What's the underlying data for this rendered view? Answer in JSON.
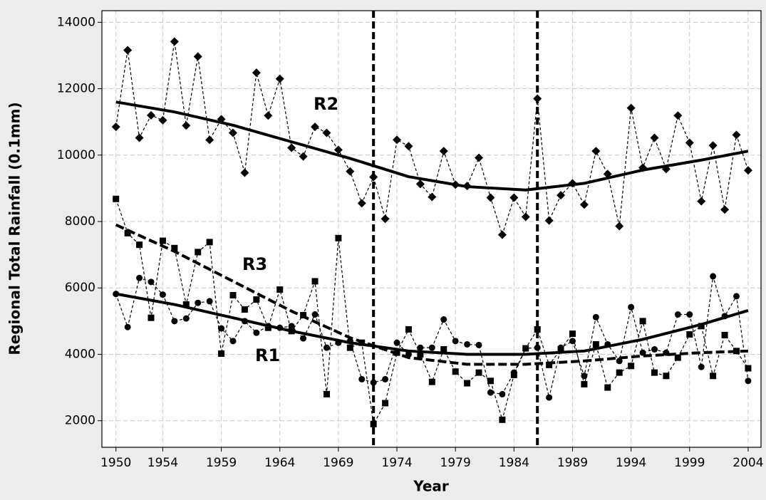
{
  "chart_data": {
    "type": "line",
    "xlabel": "Year",
    "ylabel": "Regional Total Rainfall (0.1mm)",
    "xlim": [
      1948.8,
      2005.1
    ],
    "ylim": [
      1200,
      14350
    ],
    "xticks": [
      1950,
      1954,
      1959,
      1964,
      1969,
      1974,
      1979,
      1984,
      1989,
      1994,
      1999,
      2004
    ],
    "yticks": [
      2000,
      4000,
      6000,
      8000,
      10000,
      12000,
      14000
    ],
    "grid": true,
    "vlines": [
      1972,
      1986
    ],
    "x": [
      1950,
      1951,
      1952,
      1953,
      1954,
      1955,
      1956,
      1957,
      1958,
      1959,
      1960,
      1961,
      1962,
      1963,
      1964,
      1965,
      1966,
      1967,
      1968,
      1969,
      1970,
      1971,
      1972,
      1973,
      1974,
      1975,
      1976,
      1977,
      1978,
      1979,
      1980,
      1981,
      1982,
      1983,
      1984,
      1985,
      1986,
      1987,
      1988,
      1989,
      1990,
      1991,
      1992,
      1993,
      1994,
      1995,
      1996,
      1997,
      1998,
      1999,
      2000,
      2001,
      2002,
      2003,
      2004
    ],
    "series": [
      {
        "name": "R2",
        "color": "#000000",
        "marker": "diamond",
        "trend_dash": false,
        "values": [
          10850,
          13160,
          10520,
          11200,
          11050,
          13420,
          10890,
          12970,
          10460,
          11080,
          10670,
          9470,
          12480,
          11190,
          12300,
          10220,
          9960,
          10850,
          10670,
          10160,
          9510,
          8550,
          9340,
          8080,
          10460,
          10270,
          9130,
          8740,
          10120,
          9110,
          9070,
          9920,
          8720,
          7600,
          8720,
          8140,
          11700,
          8030,
          8790,
          9150,
          8510,
          10120,
          9430,
          7860,
          11420,
          9620,
          10520,
          9580,
          11190,
          10370,
          8610,
          10290,
          8360,
          10610,
          9540
        ],
        "trend": {
          "x": [
            1950,
            1955,
            1960,
            1965,
            1970,
            1975,
            1980,
            1985,
            1990,
            1995,
            2000,
            2004
          ],
          "values": [
            11600,
            11300,
            10900,
            10400,
            9900,
            9350,
            9050,
            8950,
            9150,
            9550,
            9850,
            10120
          ]
        }
      },
      {
        "name": "R3",
        "color": "#000000",
        "marker": "square",
        "trend_dash": true,
        "values": [
          8680,
          7650,
          7300,
          5100,
          7420,
          7200,
          5500,
          7080,
          7380,
          4020,
          5780,
          5350,
          5650,
          4800,
          5950,
          4700,
          5180,
          6200,
          2800,
          7500,
          4200,
          4350,
          1900,
          2530,
          4050,
          4750,
          4000,
          3170,
          4150,
          3480,
          3130,
          3450,
          3200,
          2030,
          3380,
          4180,
          4750,
          3680,
          4150,
          4620,
          3100,
          4300,
          3000,
          3450,
          3650,
          5000,
          3450,
          3350,
          3900,
          4600,
          4850,
          3350,
          4580,
          4100,
          3580
        ],
        "trend": {
          "x": [
            1950,
            1955,
            1960,
            1965,
            1970,
            1975,
            1980,
            1985,
            1990,
            1995,
            2000,
            2004
          ],
          "values": [
            7900,
            7100,
            6200,
            5300,
            4500,
            3900,
            3700,
            3700,
            3800,
            3950,
            4050,
            4100
          ]
        }
      },
      {
        "name": "R1",
        "color": "#000000",
        "marker": "circle",
        "trend_dash": false,
        "values": [
          5820,
          4820,
          6300,
          6180,
          5800,
          5000,
          5080,
          5550,
          5600,
          4780,
          4400,
          5000,
          4650,
          4850,
          4800,
          4850,
          4480,
          5200,
          4200,
          4350,
          4400,
          3250,
          3150,
          3250,
          4350,
          4000,
          4200,
          4200,
          5050,
          4400,
          4300,
          4280,
          2850,
          2800,
          3450,
          4180,
          4200,
          2700,
          4200,
          4400,
          3350,
          5120,
          4300,
          3800,
          5420,
          4050,
          4150,
          4050,
          5200,
          5200,
          3620,
          6350,
          5150,
          5750,
          3200
        ],
        "trend": {
          "x": [
            1950,
            1955,
            1960,
            1965,
            1970,
            1975,
            1980,
            1985,
            1990,
            1995,
            2000,
            2004
          ],
          "values": [
            5820,
            5500,
            5100,
            4700,
            4350,
            4100,
            4000,
            4000,
            4100,
            4450,
            4900,
            5320
          ]
        }
      }
    ]
  }
}
